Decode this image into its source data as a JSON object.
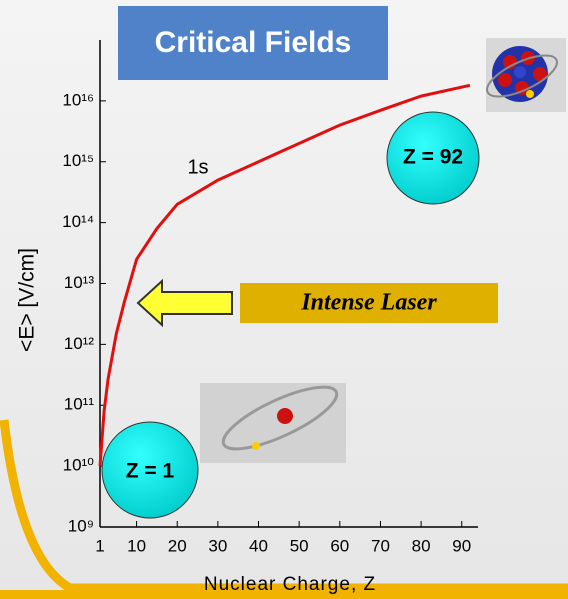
{
  "chart_data": {
    "type": "line",
    "title": "Critical Fields",
    "xlabel": "Nuclear Charge, Z",
    "ylabel": "<E>  [V/cm]",
    "annotations": [
      "1s",
      "Z = 92",
      "Z = 1",
      "Intense Laser"
    ],
    "x": [
      1,
      2,
      3,
      5,
      7,
      10,
      15,
      20,
      30,
      40,
      50,
      60,
      70,
      80,
      92
    ],
    "values": [
      10000000000.0,
      80000000000.0,
      270000000000.0,
      1500000000000.0,
      5000000000000.0,
      25000000000000.0,
      80000000000000.0,
      200000000000000.0,
      500000000000000.0,
      1000000000000000.0,
      2000000000000000.0,
      4000000000000000.0,
      7000000000000000.0,
      1.2e+16,
      1.8e+16
    ],
    "color": "#e01010",
    "xlim": [
      1,
      94
    ],
    "xticks": [
      1,
      10,
      20,
      30,
      40,
      50,
      60,
      70,
      80,
      90
    ],
    "ylim": [
      1000000000.0,
      1e+17
    ],
    "ylog": true,
    "yticks": [
      {
        "value": 1000000000.0,
        "label": "10⁹"
      },
      {
        "value": 10000000000.0,
        "label": "10¹⁰"
      },
      {
        "value": 100000000000.0,
        "label": "10¹¹"
      },
      {
        "value": 1000000000000.0,
        "label": "10¹²"
      },
      {
        "value": 10000000000000.0,
        "label": "10¹³"
      },
      {
        "value": 100000000000000.0,
        "label": "10¹⁴"
      },
      {
        "value": 1000000000000000.0,
        "label": "10¹⁵"
      },
      {
        "value": 1e+16,
        "label": "10¹⁶"
      }
    ],
    "grid": false
  }
}
